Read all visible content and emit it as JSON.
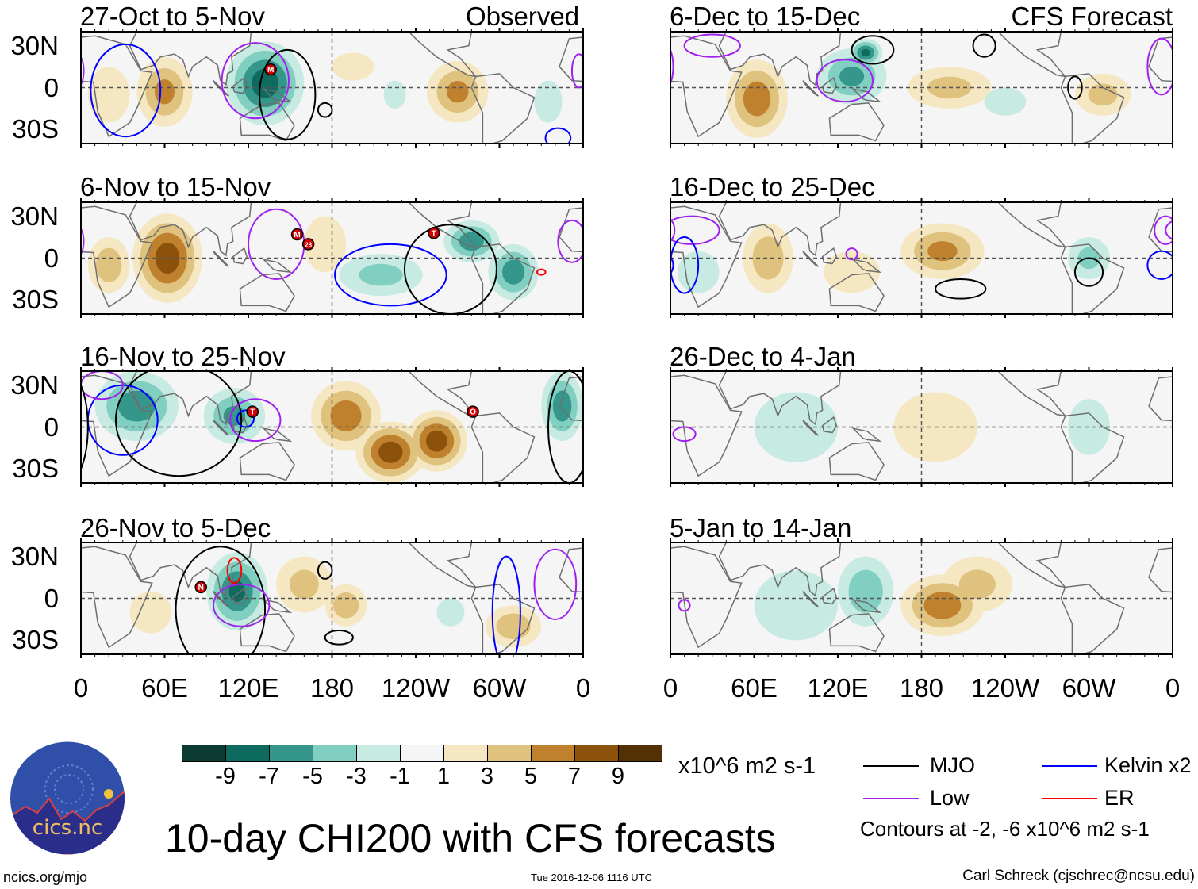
{
  "figure_title": "10-day CHI200 with CFS forecasts",
  "columns": {
    "left_label": "Observed",
    "right_label": "CFS Forecast"
  },
  "lat_labels": [
    "30N",
    "0",
    "30S"
  ],
  "lon_labels": [
    "0",
    "60E",
    "120E",
    "180",
    "120W",
    "60W",
    "0"
  ],
  "colorbar": {
    "labels": [
      "-9",
      "-7",
      "-5",
      "-3",
      "-1",
      "1",
      "3",
      "5",
      "7",
      "9"
    ],
    "colors": [
      "#0b3b33",
      "#0d6b60",
      "#35968b",
      "#80cfc1",
      "#c7ebe3",
      "#f5f5f5",
      "#f6e7c3",
      "#dfc27d",
      "#bf812d",
      "#8c510a",
      "#543005"
    ],
    "units": "x10^6 m2 s-1"
  },
  "legend": {
    "items": [
      {
        "label": "MJO",
        "color": "#000000"
      },
      {
        "label": "Kelvin x2",
        "color": "#0000ff"
      },
      {
        "label": "Low",
        "color": "#a020f0"
      },
      {
        "label": "ER",
        "color": "#ff0000"
      }
    ],
    "contours_note": "Contours at -2, -6 x10^6 m2 s-1"
  },
  "footer": {
    "left": "ncics.org/mjo",
    "center": "Tue 2016-12-06 1116 UTC",
    "right": "Carl Schreck (cjschrec@ncsu.edu)",
    "logo_text": "cics.nc",
    "logo_ring_text": "Cooperative Institute for Climate and Satellites"
  },
  "chart_data": {
    "type": "heatmap",
    "variable": "CHI200 anomaly",
    "units": "x10^6 m2 s-1",
    "lon_range": [
      0,
      360
    ],
    "lat_range": [
      -40,
      40
    ],
    "panels": [
      {
        "title": "27-Oct to 5-Nov",
        "kind": "Observed",
        "anomalies": [
          {
            "lon": 132,
            "lat": 3,
            "value": -8,
            "rlon": 28,
            "rlat": 30
          },
          {
            "lon": 60,
            "lat": -3,
            "value": 5,
            "rlon": 20,
            "rlat": 25
          },
          {
            "lon": 270,
            "lat": -3,
            "value": 5,
            "rlon": 22,
            "rlat": 22
          },
          {
            "lon": 195,
            "lat": 15,
            "value": 2,
            "rlon": 15,
            "rlat": 10
          },
          {
            "lon": 20,
            "lat": -5,
            "value": 2,
            "rlon": 15,
            "rlat": 20
          },
          {
            "lon": 335,
            "lat": -10,
            "value": -2,
            "rlon": 10,
            "rlat": 15
          },
          {
            "lon": 225,
            "lat": -5,
            "value": -2,
            "rlon": 8,
            "rlat": 10
          }
        ],
        "contours": [
          {
            "type": "mjo",
            "lon": 148,
            "lat": -5,
            "rlon": 20,
            "rlat": 32
          },
          {
            "type": "low",
            "lon": 125,
            "lat": 5,
            "rlon": 24,
            "rlat": 27
          },
          {
            "type": "kelvin",
            "lon": 32,
            "lat": -2,
            "rlon": 25,
            "rlat": 33
          },
          {
            "type": "mjo",
            "lon": 175,
            "lat": -16,
            "rlon": 5,
            "rlat": 5
          },
          {
            "type": "kelvin",
            "lon": 342,
            "lat": -36,
            "rlon": 9,
            "rlat": 7
          },
          {
            "type": "low",
            "lon": 357,
            "lat": 12,
            "rlon": 5,
            "rlat": 12
          }
        ],
        "storms": [
          {
            "label": "M",
            "lon": 136,
            "lat": 13
          }
        ]
      },
      {
        "title": "6-Nov to 15-Nov",
        "kind": "Observed",
        "anomalies": [
          {
            "lon": 62,
            "lat": 0,
            "value": 8,
            "rlon": 25,
            "rlat": 32
          },
          {
            "lon": 20,
            "lat": -5,
            "value": 4,
            "rlon": 15,
            "rlat": 20
          },
          {
            "lon": 280,
            "lat": 12,
            "value": -6,
            "rlon": 20,
            "rlat": 15
          },
          {
            "lon": 310,
            "lat": -10,
            "value": -6,
            "rlon": 18,
            "rlat": 20
          },
          {
            "lon": 215,
            "lat": -12,
            "value": -3,
            "rlon": 30,
            "rlat": 15
          },
          {
            "lon": 175,
            "lat": 10,
            "value": 2,
            "rlon": 15,
            "rlat": 20
          }
        ],
        "contours": [
          {
            "type": "low",
            "lon": 140,
            "lat": 10,
            "rlon": 20,
            "rlat": 25
          },
          {
            "type": "kelvin",
            "lon": 222,
            "lat": -12,
            "rlon": 40,
            "rlat": 22
          },
          {
            "type": "mjo",
            "lon": 265,
            "lat": -8,
            "rlon": 33,
            "rlat": 32
          },
          {
            "type": "low",
            "lon": 352,
            "lat": 12,
            "rlon": 10,
            "rlat": 15
          },
          {
            "type": "er",
            "lon": 330,
            "lat": -10,
            "rlon": 3,
            "rlat": 2
          }
        ],
        "storms": [
          {
            "label": "M",
            "lon": 155,
            "lat": 17
          },
          {
            "label": "28",
            "lon": 163,
            "lat": 10
          },
          {
            "label": "T",
            "lon": 253,
            "lat": 18
          }
        ]
      },
      {
        "title": "16-Nov to 25-Nov",
        "kind": "Observed",
        "anomalies": [
          {
            "lon": 40,
            "lat": 15,
            "value": -6,
            "rlon": 30,
            "rlat": 25
          },
          {
            "lon": 110,
            "lat": 8,
            "value": -5,
            "rlon": 22,
            "rlat": 20
          },
          {
            "lon": 190,
            "lat": 8,
            "value": 6,
            "rlon": 25,
            "rlat": 25
          },
          {
            "lon": 222,
            "lat": -18,
            "value": 8,
            "rlon": 25,
            "rlat": 22
          },
          {
            "lon": 255,
            "lat": -10,
            "value": 8,
            "rlon": 22,
            "rlat": 22
          },
          {
            "lon": 345,
            "lat": 15,
            "value": -6,
            "rlon": 15,
            "rlat": 25
          }
        ],
        "contours": [
          {
            "type": "mjo",
            "lon": 70,
            "lat": 5,
            "rlon": 45,
            "rlat": 40
          },
          {
            "type": "kelvin",
            "lon": 30,
            "lat": 5,
            "rlon": 25,
            "rlat": 25
          },
          {
            "type": "low",
            "lon": 125,
            "lat": 5,
            "rlon": 18,
            "rlat": 15
          },
          {
            "type": "kelvin",
            "lon": 118,
            "lat": 6,
            "rlon": 6,
            "rlat": 6
          },
          {
            "type": "low",
            "lon": 15,
            "lat": 30,
            "rlon": 15,
            "rlat": 10
          },
          {
            "type": "mjo",
            "lon": 350,
            "lat": 0,
            "rlon": 15,
            "rlat": 40
          }
        ],
        "storms": [
          {
            "label": "T",
            "lon": 123,
            "lat": 11
          },
          {
            "label": "O",
            "lon": 281,
            "lat": 11
          }
        ]
      },
      {
        "title": "26-Nov to 5-Dec",
        "kind": "Observed",
        "anomalies": [
          {
            "lon": 112,
            "lat": 5,
            "value": -7,
            "rlon": 22,
            "rlat": 28
          },
          {
            "lon": 160,
            "lat": 10,
            "value": 3,
            "rlon": 20,
            "rlat": 20
          },
          {
            "lon": 190,
            "lat": -5,
            "value": 4,
            "rlon": 15,
            "rlat": 15
          },
          {
            "lon": 310,
            "lat": -20,
            "value": 4,
            "rlon": 20,
            "rlat": 15
          },
          {
            "lon": 265,
            "lat": -10,
            "value": -2,
            "rlon": 10,
            "rlat": 10
          },
          {
            "lon": 50,
            "lat": -10,
            "value": 2,
            "rlon": 15,
            "rlat": 15
          }
        ],
        "contours": [
          {
            "type": "mjo",
            "lon": 100,
            "lat": -8,
            "rlon": 32,
            "rlat": 45
          },
          {
            "type": "low",
            "lon": 115,
            "lat": -5,
            "rlon": 20,
            "rlat": 15
          },
          {
            "type": "er",
            "lon": 110,
            "lat": 20,
            "rlon": 5,
            "rlat": 9
          },
          {
            "type": "mjo",
            "lon": 175,
            "lat": 20,
            "rlon": 5,
            "rlat": 6
          },
          {
            "type": "mjo",
            "lon": 185,
            "lat": -28,
            "rlon": 10,
            "rlat": 5
          },
          {
            "type": "kelvin",
            "lon": 305,
            "lat": -10,
            "rlon": 10,
            "rlat": 40
          },
          {
            "type": "low",
            "lon": 340,
            "lat": 10,
            "rlon": 15,
            "rlat": 25
          }
        ],
        "storms": [
          {
            "label": "N",
            "lon": 86,
            "lat": 8
          }
        ]
      },
      {
        "title": "6-Dec to 15-Dec",
        "kind": "CFS Forecast",
        "anomalies": [
          {
            "lon": 62,
            "lat": -8,
            "value": 6,
            "rlon": 22,
            "rlat": 28
          },
          {
            "lon": 130,
            "lat": 8,
            "value": -5,
            "rlon": 25,
            "rlat": 20
          },
          {
            "lon": 140,
            "lat": 25,
            "value": -7,
            "rlon": 12,
            "rlat": 10
          },
          {
            "lon": 200,
            "lat": 0,
            "value": 3,
            "rlon": 30,
            "rlat": 15
          },
          {
            "lon": 310,
            "lat": -5,
            "value": 3,
            "rlon": 20,
            "rlat": 15
          },
          {
            "lon": 240,
            "lat": -10,
            "value": -2,
            "rlon": 15,
            "rlat": 10
          }
        ],
        "contours": [
          {
            "type": "mjo",
            "lon": 145,
            "lat": 27,
            "rlon": 15,
            "rlat": 10
          },
          {
            "type": "low",
            "lon": 125,
            "lat": 5,
            "rlon": 20,
            "rlat": 15
          },
          {
            "type": "mjo",
            "lon": 225,
            "lat": 30,
            "rlon": 8,
            "rlat": 8
          },
          {
            "type": "mjo",
            "lon": 290,
            "lat": 0,
            "rlon": 5,
            "rlat": 8
          },
          {
            "type": "low",
            "lon": 30,
            "lat": 30,
            "rlon": 20,
            "rlat": 8
          },
          {
            "type": "low",
            "lon": 352,
            "lat": 15,
            "rlon": 10,
            "rlat": 20
          }
        ],
        "storms": []
      },
      {
        "title": "16-Dec to 25-Dec",
        "kind": "CFS Forecast",
        "anomalies": [
          {
            "lon": 195,
            "lat": 5,
            "value": 5,
            "rlon": 30,
            "rlat": 20
          },
          {
            "lon": 70,
            "lat": 0,
            "value": 4,
            "rlon": 18,
            "rlat": 25
          },
          {
            "lon": 20,
            "lat": -10,
            "value": -2,
            "rlon": 15,
            "rlat": 15
          },
          {
            "lon": 300,
            "lat": 0,
            "value": -3,
            "rlon": 15,
            "rlat": 15
          },
          {
            "lon": 130,
            "lat": -10,
            "value": 2,
            "rlon": 20,
            "rlat": 15
          }
        ],
        "contours": [
          {
            "type": "mjo",
            "lon": 208,
            "lat": -22,
            "rlon": 18,
            "rlat": 7
          },
          {
            "type": "mjo",
            "lon": 300,
            "lat": -10,
            "rlon": 10,
            "rlat": 10
          },
          {
            "type": "low",
            "lon": 15,
            "lat": 20,
            "rlon": 20,
            "rlat": 10
          },
          {
            "type": "kelvin",
            "lon": 10,
            "lat": -5,
            "rlon": 10,
            "rlat": 20
          },
          {
            "type": "low",
            "lon": 130,
            "lat": 3,
            "rlon": 4,
            "rlat": 4
          },
          {
            "type": "low",
            "lon": 355,
            "lat": 20,
            "rlon": 8,
            "rlat": 10
          },
          {
            "type": "kelvin",
            "lon": 352,
            "lat": -5,
            "rlon": 10,
            "rlat": 10
          }
        ],
        "storms": []
      },
      {
        "title": "26-Dec to 4-Jan",
        "kind": "CFS Forecast",
        "anomalies": [
          {
            "lon": 90,
            "lat": 0,
            "value": -2,
            "rlon": 30,
            "rlat": 25
          },
          {
            "lon": 190,
            "lat": 0,
            "value": 2,
            "rlon": 30,
            "rlat": 25
          },
          {
            "lon": 300,
            "lat": 0,
            "value": -2,
            "rlon": 15,
            "rlat": 20
          }
        ],
        "contours": [
          {
            "type": "low",
            "lon": 10,
            "lat": -5,
            "rlon": 8,
            "rlat": 5
          }
        ],
        "storms": []
      },
      {
        "title": "5-Jan to 14-Jan",
        "kind": "CFS Forecast",
        "anomalies": [
          {
            "lon": 140,
            "lat": 5,
            "value": -4,
            "rlon": 20,
            "rlat": 25
          },
          {
            "lon": 195,
            "lat": -5,
            "value": 6,
            "rlon": 30,
            "rlat": 22
          },
          {
            "lon": 220,
            "lat": 10,
            "value": 3,
            "rlon": 25,
            "rlat": 20
          },
          {
            "lon": 90,
            "lat": -5,
            "value": -2,
            "rlon": 30,
            "rlat": 25
          }
        ],
        "contours": [
          {
            "type": "low",
            "lon": 10,
            "lat": -5,
            "rlon": 4,
            "rlat": 4
          }
        ],
        "storms": []
      }
    ]
  }
}
